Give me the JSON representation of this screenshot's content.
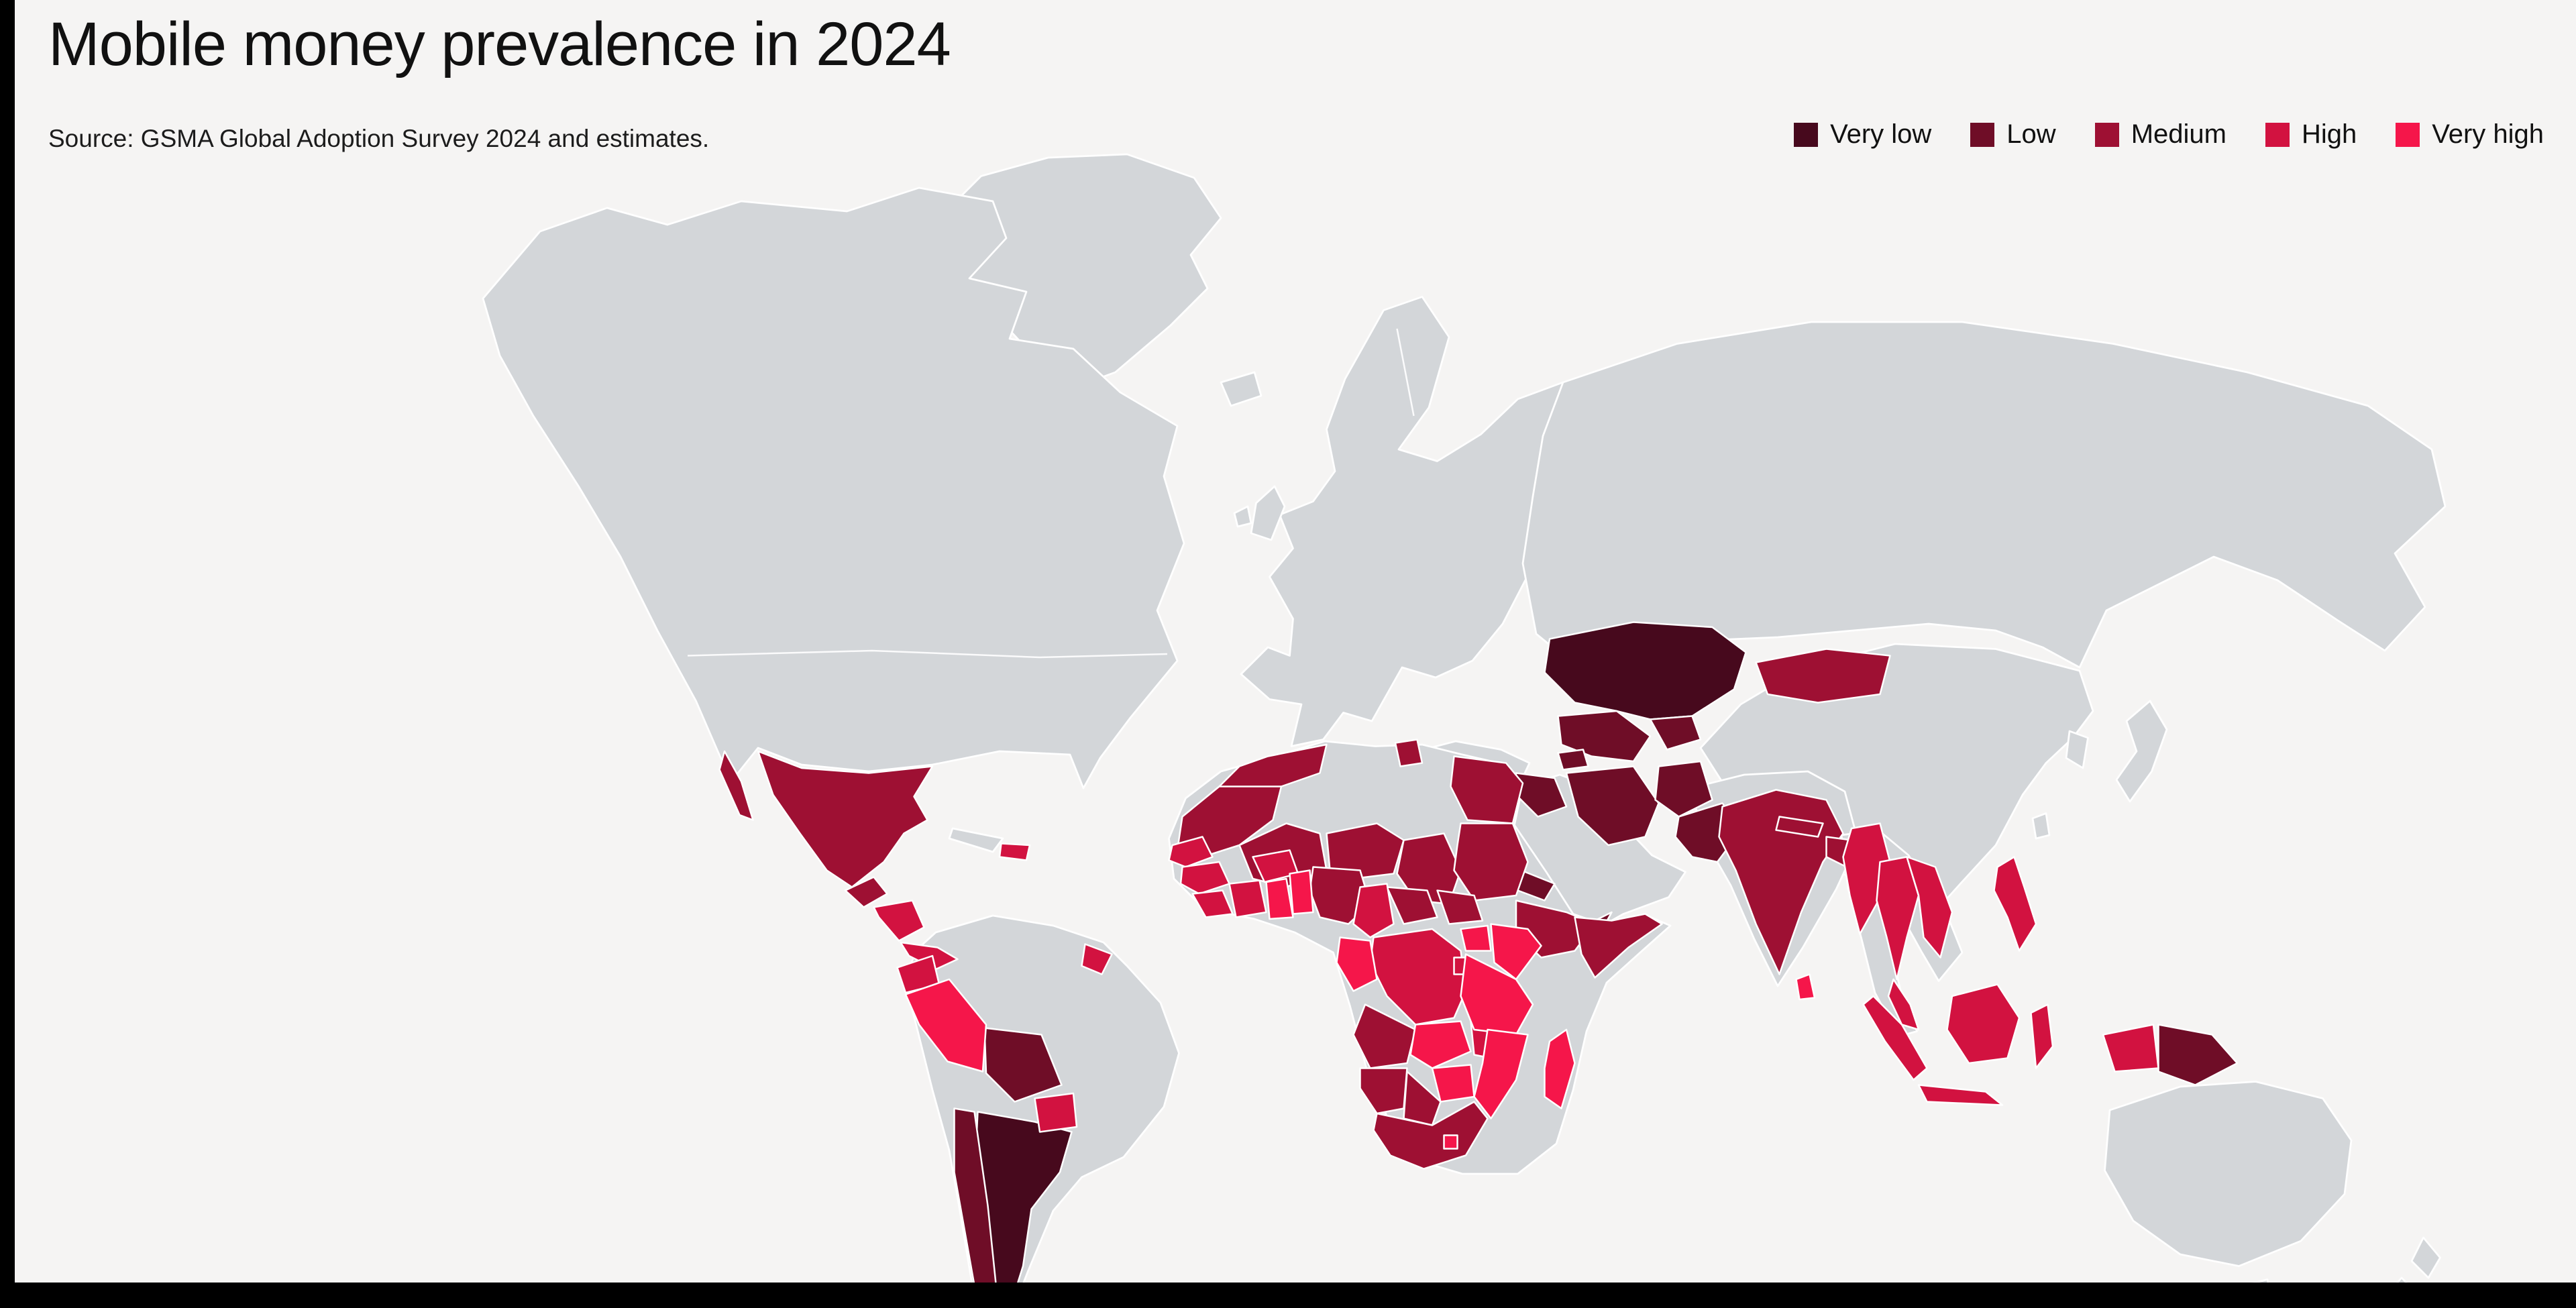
{
  "header": {
    "title": "Mobile money prevalence in 2024",
    "source": "Source: GSMA Global Adoption Survey 2024 and estimates."
  },
  "legend": {
    "items": [
      {
        "label": "Very low",
        "color": "#47091d"
      },
      {
        "label": "Low",
        "color": "#6f0d27"
      },
      {
        "label": "Medium",
        "color": "#9e1033"
      },
      {
        "label": "High",
        "color": "#d21240"
      },
      {
        "label": "Very high",
        "color": "#f5164a"
      }
    ]
  },
  "chart_data": {
    "type": "heatmap",
    "subtype": "world-choropleth",
    "title": "Mobile money prevalence in 2024",
    "source": "Source: GSMA Global Adoption Survey 2024 and estimates.",
    "legend_position": "top-right",
    "categories": [
      "Very low",
      "Low",
      "Medium",
      "High",
      "Very high"
    ],
    "category_colors": [
      "#47091d",
      "#6f0d27",
      "#9e1033",
      "#d21240",
      "#f5164a"
    ],
    "no_data_color": "#d3d6d9",
    "ocean_color": "#f5f4f3",
    "regions": [
      {
        "name": "Kazakhstan",
        "category": "Very low"
      },
      {
        "name": "Argentina",
        "category": "Very low"
      },
      {
        "name": "Chile",
        "category": "Low"
      },
      {
        "name": "Bolivia",
        "category": "Low"
      },
      {
        "name": "Uzbekistan/Turkmenistan",
        "category": "Low"
      },
      {
        "name": "Kyrgyzstan/Tajikistan",
        "category": "Low"
      },
      {
        "name": "Azerbaijan",
        "category": "Low"
      },
      {
        "name": "Iran",
        "category": "Low"
      },
      {
        "name": "Iraq",
        "category": "Low"
      },
      {
        "name": "Afghanistan",
        "category": "Low"
      },
      {
        "name": "Pakistan",
        "category": "Low"
      },
      {
        "name": "Yemen",
        "category": "Low"
      },
      {
        "name": "Eritrea/Djibouti",
        "category": "Low"
      },
      {
        "name": "Papua New Guinea",
        "category": "Low"
      },
      {
        "name": "Mexico",
        "category": "Medium"
      },
      {
        "name": "Guatemala",
        "category": "Medium"
      },
      {
        "name": "Morocco",
        "category": "Medium"
      },
      {
        "name": "Western Sahara/Mauritania",
        "category": "Medium"
      },
      {
        "name": "Tunisia",
        "category": "Medium"
      },
      {
        "name": "Egypt",
        "category": "Medium"
      },
      {
        "name": "Mali",
        "category": "Medium"
      },
      {
        "name": "Niger",
        "category": "Medium"
      },
      {
        "name": "Chad",
        "category": "Medium"
      },
      {
        "name": "Sudan",
        "category": "Medium"
      },
      {
        "name": "Ethiopia",
        "category": "Medium"
      },
      {
        "name": "Somalia",
        "category": "Medium"
      },
      {
        "name": "Nigeria",
        "category": "Medium"
      },
      {
        "name": "Central African Republic",
        "category": "Medium"
      },
      {
        "name": "South Sudan",
        "category": "Medium"
      },
      {
        "name": "Angola",
        "category": "Medium"
      },
      {
        "name": "Namibia",
        "category": "Medium"
      },
      {
        "name": "Botswana",
        "category": "Medium"
      },
      {
        "name": "South Africa",
        "category": "Medium"
      },
      {
        "name": "India",
        "category": "Medium"
      },
      {
        "name": "Bangladesh",
        "category": "Medium"
      },
      {
        "name": "Nepal",
        "category": "Medium"
      },
      {
        "name": "Mongolia",
        "category": "Medium"
      },
      {
        "name": "Honduras/Nicaragua",
        "category": "High"
      },
      {
        "name": "Costa Rica/Panama",
        "category": "High"
      },
      {
        "name": "Haiti/Dominican Republic",
        "category": "High"
      },
      {
        "name": "Guyana",
        "category": "High"
      },
      {
        "name": "Ecuador",
        "category": "High"
      },
      {
        "name": "Paraguay",
        "category": "High"
      },
      {
        "name": "Senegal/Gambia",
        "category": "High"
      },
      {
        "name": "Guinea",
        "category": "High"
      },
      {
        "name": "Sierra Leone/Liberia",
        "category": "High"
      },
      {
        "name": "Côte d'Ivoire",
        "category": "High"
      },
      {
        "name": "Burkina Faso",
        "category": "High"
      },
      {
        "name": "Cameroon",
        "category": "High"
      },
      {
        "name": "DR Congo",
        "category": "High"
      },
      {
        "name": "Rwanda/Burundi",
        "category": "High"
      },
      {
        "name": "Malawi",
        "category": "High"
      },
      {
        "name": "Myanmar",
        "category": "High"
      },
      {
        "name": "Thailand",
        "category": "High"
      },
      {
        "name": "Vietnam/Cambodia",
        "category": "High"
      },
      {
        "name": "Malaysia",
        "category": "High"
      },
      {
        "name": "Philippines",
        "category": "High"
      },
      {
        "name": "Indonesia",
        "category": "High"
      },
      {
        "name": "Peru",
        "category": "Very high"
      },
      {
        "name": "Ghana",
        "category": "Very high"
      },
      {
        "name": "Benin/Togo",
        "category": "Very high"
      },
      {
        "name": "Uganda",
        "category": "Very high"
      },
      {
        "name": "Kenya",
        "category": "Very high"
      },
      {
        "name": "Tanzania",
        "category": "Very high"
      },
      {
        "name": "Zambia",
        "category": "Very high"
      },
      {
        "name": "Zimbabwe",
        "category": "Very high"
      },
      {
        "name": "Mozambique",
        "category": "Very high"
      },
      {
        "name": "Lesotho/Eswatini",
        "category": "Very high"
      },
      {
        "name": "Madagascar",
        "category": "Very high"
      },
      {
        "name": "Sri Lanka",
        "category": "Very high"
      },
      {
        "name": "Gabon/Congo",
        "category": "Very high"
      }
    ]
  }
}
